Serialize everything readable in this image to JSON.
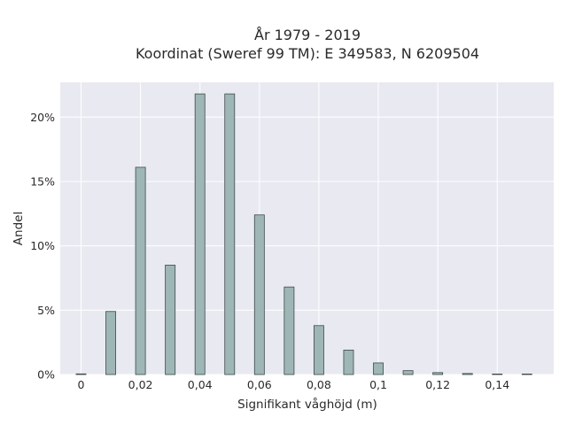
{
  "chart_data": {
    "type": "bar",
    "title_line1": "År 1979 - 2019",
    "title_line2": "Koordinat (Sweref 99 TM): E 349583, N 6209504",
    "xlabel": "Signifikant våghöjd (m)",
    "ylabel": "Andel",
    "x": [
      0,
      0.01,
      0.02,
      0.03,
      0.04,
      0.05,
      0.06,
      0.07,
      0.08,
      0.09,
      0.1,
      0.11,
      0.12,
      0.13,
      0.14,
      0.15
    ],
    "values": [
      0.05,
      4.9,
      16.1,
      8.5,
      21.8,
      21.8,
      12.4,
      6.8,
      3.8,
      1.9,
      0.9,
      0.3,
      0.15,
      0.08,
      0.04,
      0.02
    ],
    "xlim": [
      -0.007,
      0.159
    ],
    "ylim": [
      0,
      22.7
    ],
    "xticks": [
      0,
      0.02,
      0.04,
      0.06,
      0.08,
      0.1,
      0.12,
      0.14
    ],
    "xtick_labels": [
      "0",
      "0,02",
      "0,04",
      "0,06",
      "0,08",
      "0,1",
      "0,12",
      "0,14"
    ],
    "yticks": [
      0,
      5,
      10,
      15,
      20
    ],
    "ytick_labels": [
      "0%",
      "5%",
      "10%",
      "15%",
      "20%"
    ],
    "grid": true,
    "colors": {
      "bar_fill": "#9fb6b6",
      "bar_stroke": "#3d4a4a",
      "plot_bg": "#e9e9f2",
      "grid": "#ffffff"
    }
  }
}
